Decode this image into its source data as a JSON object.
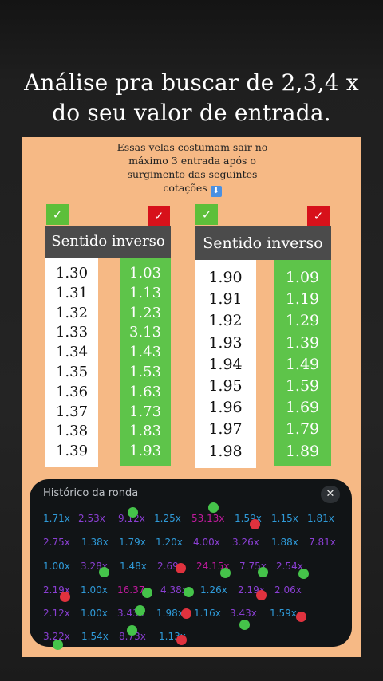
{
  "headline": {
    "line1": "Análise pra buscar  de 2,3,4 x",
    "line2": "do seu valor de entrada."
  },
  "note": {
    "text": "Essas velas costumam sair no máximo 3 entrada após o surgimento das seguintes cotações",
    "emoji": "⬇"
  },
  "left_table": {
    "check_ok": "✓",
    "check_no": "✓",
    "header": "Sentido inverso",
    "white_values": [
      "1.30",
      "1.31",
      "1.32",
      "1.33",
      "1.34",
      "1.35",
      "1.36",
      "1.37",
      "1.38",
      "1.39"
    ],
    "green_values": [
      "1.03",
      "1.13",
      "1.23",
      "3.13",
      "1.43",
      "1.53",
      "1.63",
      "1.73",
      "1.83",
      "1.93"
    ]
  },
  "right_table": {
    "check_ok": "✓",
    "check_no": "✓",
    "header": "Sentido inverso",
    "white_values": [
      "1.90",
      "1.91",
      "1.92",
      "1.93",
      "1.94",
      "1.95",
      "1.96",
      "1.97",
      "1.98"
    ],
    "green_values": [
      "1.09",
      "1.19",
      "1.29",
      "1.39",
      "1.49",
      "1.59",
      "1.69",
      "1.79",
      "1.89"
    ]
  },
  "history": {
    "title": "Histórico da ronda",
    "close_label": "✕",
    "rows": [
      [
        {
          "v": "1.71x",
          "c": "blue"
        },
        {
          "v": "2.53x",
          "c": "purple"
        },
        {
          "v": "9.12x",
          "c": "purple"
        },
        {
          "v": "1.25x",
          "c": "blue"
        },
        {
          "v": "53.13x",
          "c": "pink"
        },
        {
          "v": "1.59x",
          "c": "blue"
        },
        {
          "v": "1.15x",
          "c": "blue"
        },
        {
          "v": "1.81x",
          "c": "blue"
        }
      ],
      [
        {
          "v": "2.75x",
          "c": "purple"
        },
        {
          "v": "1.38x",
          "c": "blue"
        },
        {
          "v": "1.79x",
          "c": "blue"
        },
        {
          "v": "1.20x",
          "c": "blue"
        },
        {
          "v": "4.00x",
          "c": "purple"
        },
        {
          "v": "3.26x",
          "c": "purple"
        },
        {
          "v": "1.88x",
          "c": "blue"
        },
        {
          "v": "7.81x",
          "c": "purple"
        }
      ],
      [
        {
          "v": "1.00x",
          "c": "blue"
        },
        {
          "v": "3.28x",
          "c": "purple"
        },
        {
          "v": "1.48x",
          "c": "blue"
        },
        {
          "v": "2.69x",
          "c": "purple"
        },
        {
          "v": "24.15x",
          "c": "pink"
        },
        {
          "v": "7.75x",
          "c": "purple"
        },
        {
          "v": "2.54x",
          "c": "purple"
        }
      ],
      [
        {
          "v": "2.19x",
          "c": "purple"
        },
        {
          "v": "1.00x",
          "c": "blue"
        },
        {
          "v": "16.37x",
          "c": "pink"
        },
        {
          "v": "4.38x",
          "c": "purple"
        },
        {
          "v": "1.26x",
          "c": "blue"
        },
        {
          "v": "2.19x",
          "c": "purple"
        },
        {
          "v": "2.06x",
          "c": "purple"
        }
      ],
      [
        {
          "v": "2.12x",
          "c": "purple"
        },
        {
          "v": "1.00x",
          "c": "blue"
        },
        {
          "v": "3.43x",
          "c": "purple"
        },
        {
          "v": "1.98x",
          "c": "blue"
        },
        {
          "v": "1.16x",
          "c": "blue"
        },
        {
          "v": "3.43x",
          "c": "purple"
        },
        {
          "v": "1.59x",
          "c": "blue"
        }
      ],
      [
        {
          "v": "3.22x",
          "c": "purple"
        },
        {
          "v": "1.54x",
          "c": "blue"
        },
        {
          "v": "8.73x",
          "c": "purple"
        },
        {
          "v": "1.13x",
          "c": "blue"
        }
      ]
    ]
  },
  "colors": {
    "panel": "#f6b985",
    "green": "#5ec44a",
    "red": "#d7111a",
    "header": "#4b4b4b",
    "mult_blue": "#2f9ad8",
    "mult_purple": "#8a3fd2",
    "mult_pink": "#c01a9d"
  }
}
